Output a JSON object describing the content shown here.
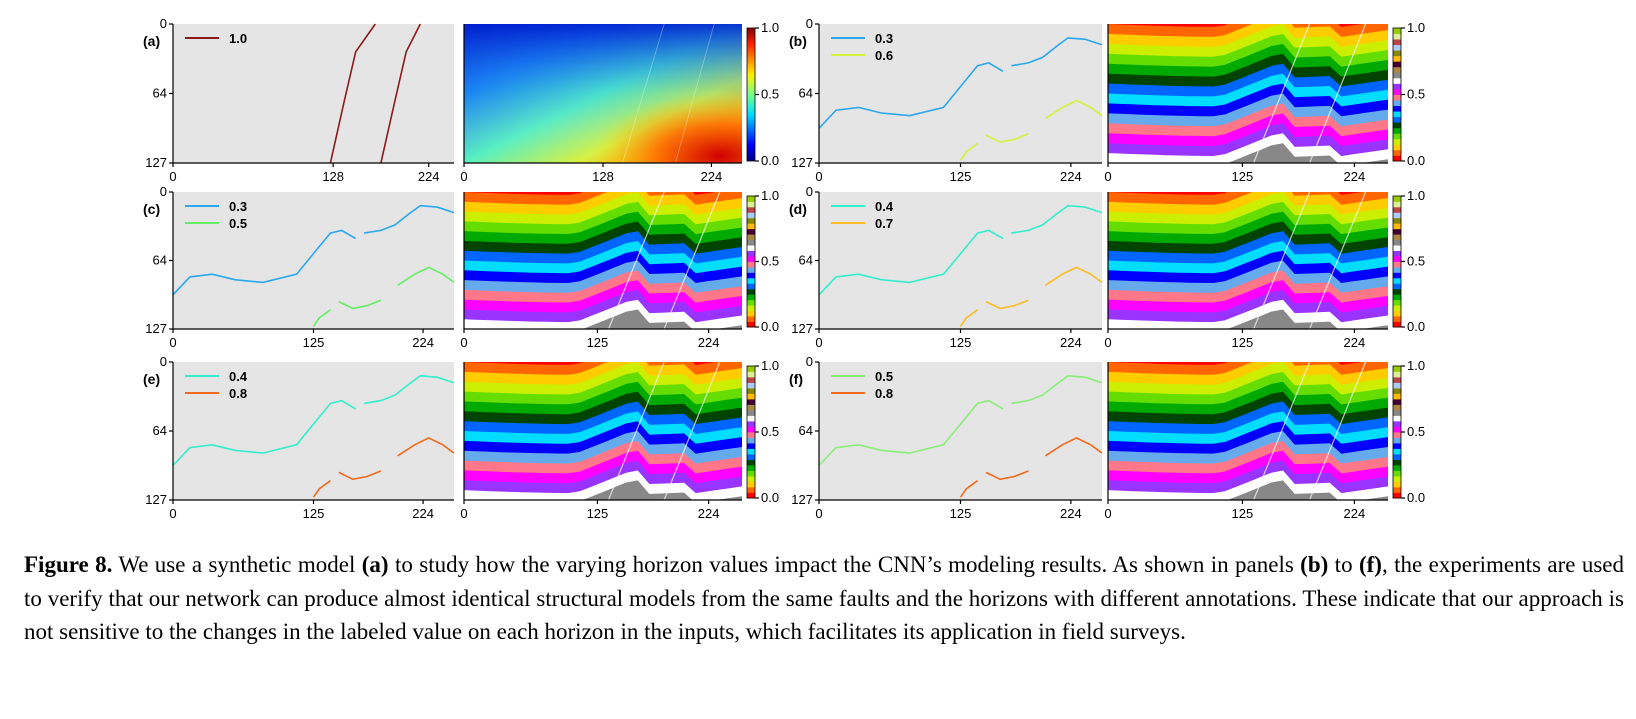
{
  "figure": {
    "panels": [
      {
        "id": "a",
        "label": "(a)",
        "legend": [
          {
            "value": "1.0",
            "color": "#8b1a1a"
          }
        ]
      },
      {
        "id": "b",
        "label": "(b)",
        "legend": [
          {
            "value": "0.3",
            "color": "#2aa8ef"
          },
          {
            "value": "0.6",
            "color": "#d4f238"
          }
        ]
      },
      {
        "id": "c",
        "label": "(c)",
        "legend": [
          {
            "value": "0.3",
            "color": "#2aa8ef"
          },
          {
            "value": "0.5",
            "color": "#66ee66"
          }
        ]
      },
      {
        "id": "d",
        "label": "(d)",
        "legend": [
          {
            "value": "0.4",
            "color": "#33eecc"
          },
          {
            "value": "0.7",
            "color": "#ffbb22"
          }
        ]
      },
      {
        "id": "e",
        "label": "(e)",
        "legend": [
          {
            "value": "0.4",
            "color": "#33eecc"
          },
          {
            "value": "0.8",
            "color": "#f26a1b"
          }
        ]
      },
      {
        "id": "f",
        "label": "(f)",
        "legend": [
          {
            "value": "0.5",
            "color": "#88ee77"
          },
          {
            "value": "0.8",
            "color": "#f26a1b"
          }
        ]
      }
    ],
    "y_ticks": [
      "0",
      "64",
      "127"
    ],
    "x_ticks_a": [
      "0",
      "128",
      "224"
    ],
    "x_ticks": [
      "0",
      "125",
      "224"
    ],
    "colorbar_ticks": [
      "1.0",
      "0.5",
      "0.0"
    ],
    "colorbar_bottom_labels": [
      "0.0",
      "0.0",
      "0.0",
      "0.0",
      "0.0"
    ],
    "label_colormap": [
      "#ff0000",
      "#ff6600",
      "#ffcc00",
      "#ccee00",
      "#66dd00",
      "#00aa00",
      "#004400",
      "#0066ff",
      "#00ddff",
      "#0000ff",
      "#66aaee",
      "#ff7788",
      "#ff00ff",
      "#9933ff",
      "#ffffff",
      "#888888",
      "#aa8844",
      "#440033",
      "#ffbb00",
      "#888800",
      "#aaccff",
      "#bb4444",
      "#ddee99",
      "#99cc00"
    ],
    "background_color": "#e5e5e5"
  },
  "caption": {
    "figure_label": "Figure 8.",
    "part1": " We use a synthetic model ",
    "ref_a": "(a)",
    "part2": " to study how the varying horizon values impact the CNN’s modeling results. As shown in panels ",
    "ref_b": "(b)",
    "part3": " to ",
    "ref_f": "(f)",
    "part4": ", the experiments are used to verify that our network can produce almost identical structural models from the same faults and the horizons with different annotations. These indicate that our approach is not sensitive to the changes in the labeled value on each horizon in the inputs, which facilitates its application in field surveys."
  }
}
